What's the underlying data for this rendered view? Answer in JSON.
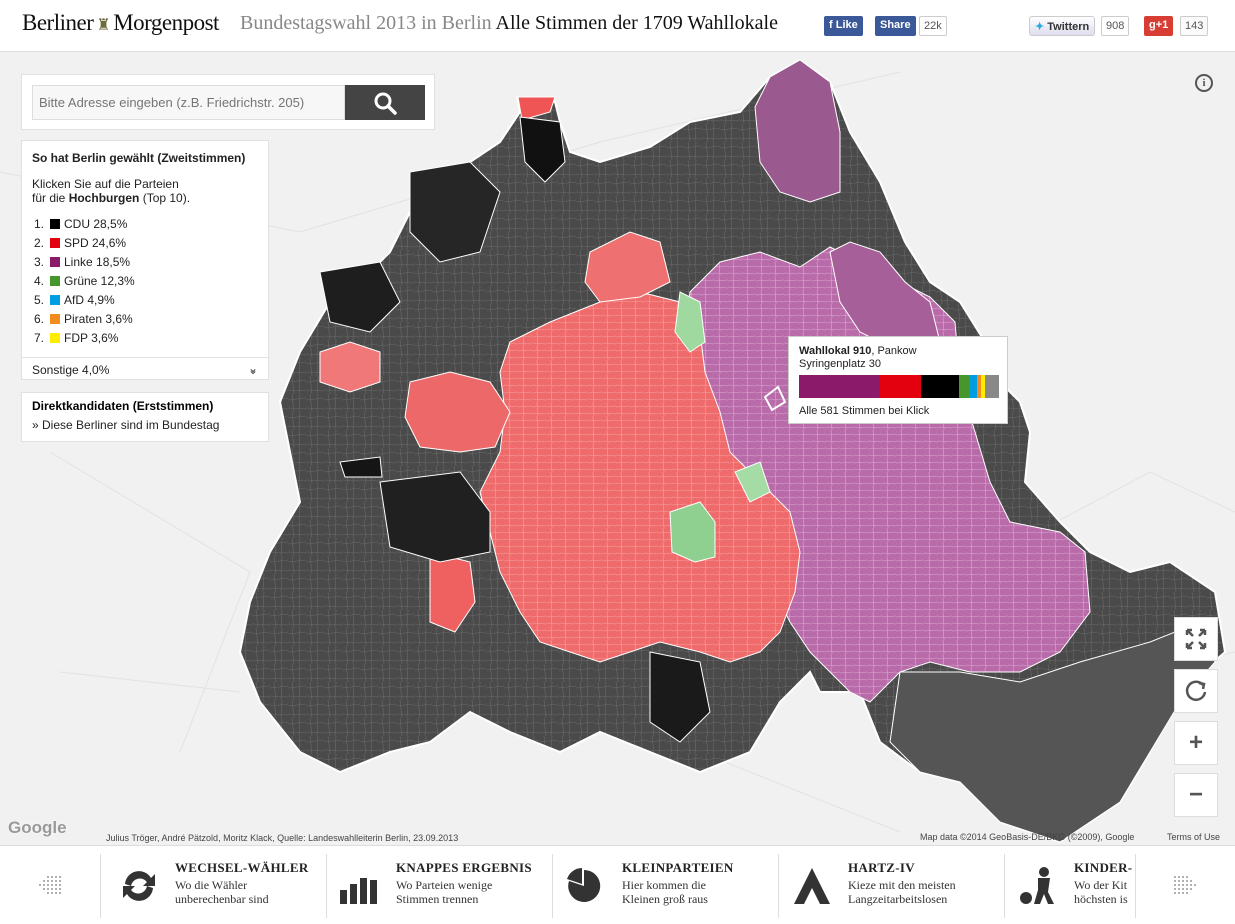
{
  "header": {
    "logo_left": "Berliner",
    "logo_right": "Morgenpost",
    "title_grey": "Bundestagswahl 2013 in Berlin",
    "title_dark": "Alle Stimmen der 1709 Wahllokale",
    "fb_like": "Like",
    "fb_share": "Share",
    "fb_count": "22k",
    "twitter_label": "Twittern",
    "twitter_count": "908",
    "gplus_label": "+1",
    "gplus_count": "143"
  },
  "search": {
    "placeholder": "Bitte Adresse eingeben (z.B. Friedrichstr. 205)"
  },
  "legend": {
    "title": "So hat Berlin gewählt (Zweitstimmen)",
    "intro_1": "Klicken Sie auf die Parteien",
    "intro_2_prefix": "für die ",
    "intro_2_bold": "Hochburgen",
    "intro_2_suffix": " (Top 10).",
    "parties": [
      {
        "num": "1.",
        "label": "CDU 28,5%",
        "color": "#000000"
      },
      {
        "num": "2.",
        "label": "SPD 24,6%",
        "color": "#e3000f"
      },
      {
        "num": "3.",
        "label": "Linke 18,5%",
        "color": "#8b1a6b"
      },
      {
        "num": "4.",
        "label": "Grüne 12,3%",
        "color": "#46962b"
      },
      {
        "num": "5.",
        "label": "AfD 4,9%",
        "color": "#009ee0"
      },
      {
        "num": "6.",
        "label": "Piraten 3,6%",
        "color": "#f28c1f"
      },
      {
        "num": "7.",
        "label": "FDP 3,6%",
        "color": "#ffed00"
      }
    ],
    "sonstige": "Sonstige 4,0%"
  },
  "direkt": {
    "title": "Direktkandidaten (Erststimmen)",
    "link": "» Diese Berliner sind im Bundestag"
  },
  "tooltip": {
    "name_bold": "Wahllokal 910",
    "name_rest": ", Pankow",
    "address": "Syringenplatz 30",
    "footer": "Alle 581 Stimmen bei Klick",
    "bar": [
      {
        "party": "Linke",
        "share": 0.4,
        "color": "#8b1a6b"
      },
      {
        "party": "SPD",
        "share": 0.21,
        "color": "#e3000f"
      },
      {
        "party": "CDU",
        "share": 0.19,
        "color": "#000000"
      },
      {
        "party": "Grüne",
        "share": 0.05,
        "color": "#46962b"
      },
      {
        "party": "AfD",
        "share": 0.04,
        "color": "#009ee0"
      },
      {
        "party": "Piraten",
        "share": 0.02,
        "color": "#f28c1f"
      },
      {
        "party": "FDP",
        "share": 0.02,
        "color": "#ffed00"
      },
      {
        "party": "Sonstige",
        "share": 0.07,
        "color": "#888888"
      }
    ]
  },
  "map": {
    "google_logo": "Google",
    "credits": "Julius Tröger, André Pätzold, Moritz Klack, Quelle: Landeswahlleiterin Berlin, 23.09.2013",
    "mapdata": "Map data ©2014 GeoBasis-DE/BKG (©2009), Google",
    "terms": "Terms of Use"
  },
  "controls": {
    "fullscreen_icon": "fullscreen-icon",
    "reset_icon": "reset-icon",
    "zoom_in": "+",
    "zoom_out": "−"
  },
  "footer": {
    "items": [
      {
        "title": "WECHSEL-WÄHLER",
        "sub1": "Wo die Wähler",
        "sub2": "unberechenbar sind",
        "icon": "swap-arrows-icon"
      },
      {
        "title": "KNAPPES ERGEBNIS",
        "sub1": "Wo Parteien wenige",
        "sub2": "Stimmen trennen",
        "icon": "bar-chart-icon"
      },
      {
        "title": "KLEINPARTEIEN",
        "sub1": "Hier kommen die",
        "sub2": "Kleinen groß raus",
        "icon": "pie-chart-icon"
      },
      {
        "title": "HARTZ-IV",
        "sub1": "Kieze mit den meisten",
        "sub2": "Langzeitarbeitslosen",
        "icon": "hartz-a-icon"
      },
      {
        "title": "KINDER-",
        "sub1": "Wo der Kit",
        "sub2": "höchsten is",
        "icon": "child-football-icon"
      }
    ]
  }
}
